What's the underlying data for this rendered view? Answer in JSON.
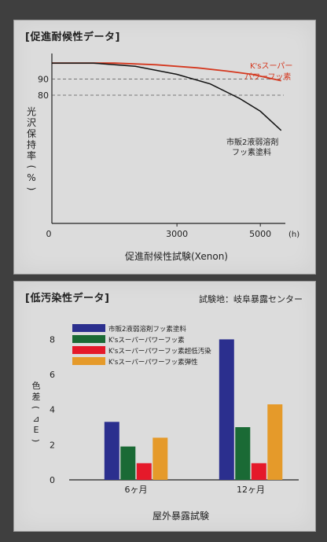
{
  "colors": {
    "page_bg": "#3f3f3f",
    "panel_bg": "#dcdcdc",
    "ks_red": "#d4381f",
    "blue": "#2b2f8e",
    "green": "#1a6a35",
    "bright_red": "#e5192a",
    "orange": "#e59a2a"
  },
  "panel1": {
    "title": "[促進耐候性データ]"
  },
  "panel2": {
    "title": "[低汚染性データ]",
    "site_note": "試験地：岐阜暴露センター"
  },
  "chart_data": [
    {
      "type": "line",
      "title": "[促進耐候性データ]",
      "xlabel": "促進耐候性試験(Xenon)",
      "ylabel": "光沢保持率(%)",
      "x_unit": "(h)",
      "xlim": [
        0,
        5600
      ],
      "ylim": [
        0,
        106
      ],
      "x_ticks": [
        "0",
        "3000",
        "5000"
      ],
      "y_ticks": [
        "80",
        "90"
      ],
      "reference_lines": [
        90,
        80
      ],
      "series": [
        {
          "name": "K'sスーパーパワーフッ素",
          "label_lines": [
            "K'sスーパー",
            "パワーフッ素"
          ],
          "color": "#d4381f",
          "points": [
            [
              0,
              100
            ],
            [
              1500,
              100
            ],
            [
              2500,
              99
            ],
            [
              3500,
              97
            ],
            [
              4200,
              95
            ],
            [
              4800,
              93
            ],
            [
              5500,
              89
            ]
          ]
        },
        {
          "name": "市販2液弱溶剤フッ素塗料",
          "label_lines": [
            "市販2液弱溶剤",
            "フッ素塗料"
          ],
          "color": "#111111",
          "points": [
            [
              0,
              100
            ],
            [
              1000,
              100
            ],
            [
              2000,
              98
            ],
            [
              3000,
              93
            ],
            [
              3800,
              87
            ],
            [
              4500,
              78
            ],
            [
              5000,
              70
            ],
            [
              5500,
              58
            ]
          ]
        }
      ]
    },
    {
      "type": "bar",
      "title": "[低汚染性データ]",
      "xlabel": "屋外暴露試験",
      "ylabel": "色差(⊿E)",
      "ylim": [
        0,
        8.6
      ],
      "y_ticks": [
        "0",
        "2",
        "4",
        "6",
        "8"
      ],
      "categories": [
        "6ヶ月",
        "12ヶ月"
      ],
      "series": [
        {
          "name": "市販2液弱溶剤フッ素塗料",
          "color": "#2b2f8e",
          "values": [
            3.3,
            8.0
          ]
        },
        {
          "name": "K'sスーパーパワーフッ素",
          "color": "#1a6a35",
          "values": [
            1.9,
            3.0
          ]
        },
        {
          "name": "K'sスーパーパワーフッ素超低汚染",
          "color": "#e5192a",
          "values": [
            0.95,
            0.95
          ]
        },
        {
          "name": "K'sスーパーパワーフッ素弾性",
          "color": "#e59a2a",
          "values": [
            2.4,
            4.3
          ]
        }
      ]
    }
  ]
}
